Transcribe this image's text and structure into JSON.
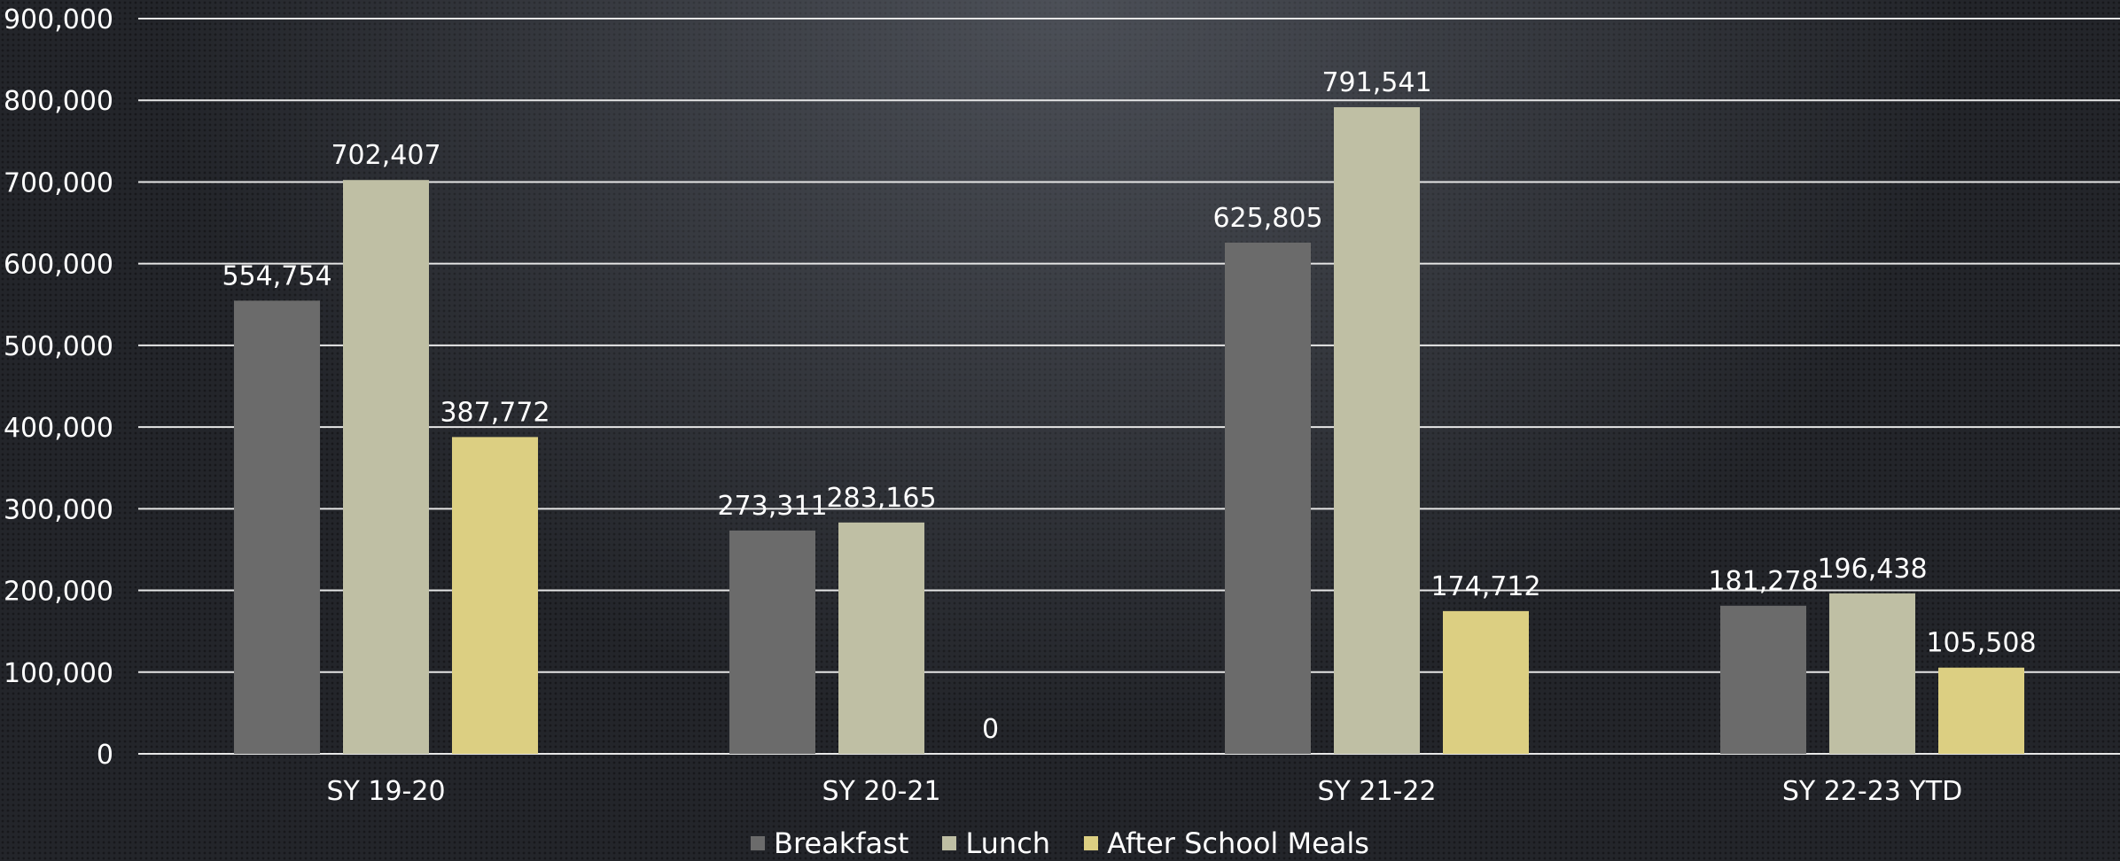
{
  "chart_data": {
    "type": "bar",
    "categories": [
      "SY 19-20",
      "SY 20-21",
      "SY 21-22",
      "SY 22-23 YTD"
    ],
    "series": [
      {
        "name": "Breakfast",
        "values": [
          554754,
          273311,
          625805,
          181278
        ],
        "labels": [
          "554,754",
          "273,311",
          "625,805",
          "181,278"
        ],
        "color": "#6b6b6b"
      },
      {
        "name": "Lunch",
        "values": [
          702407,
          283165,
          791541,
          196438
        ],
        "labels": [
          "702,407",
          "283,165",
          "791,541",
          "196,438"
        ],
        "color": "#bfbfa4"
      },
      {
        "name": "After School Meals",
        "values": [
          387772,
          0,
          174712,
          105508
        ],
        "labels": [
          "387,772",
          "0",
          "174,712",
          "105,508"
        ],
        "color": "#dccf82"
      }
    ],
    "ylim": [
      0,
      900000
    ],
    "yticks": [
      "0",
      "100,000",
      "200,000",
      "300,000",
      "400,000",
      "500,000",
      "600,000",
      "700,000",
      "800,000",
      "900,000"
    ],
    "grid": true,
    "legend_position": "bottom",
    "title": "",
    "xlabel": "",
    "ylabel": ""
  }
}
